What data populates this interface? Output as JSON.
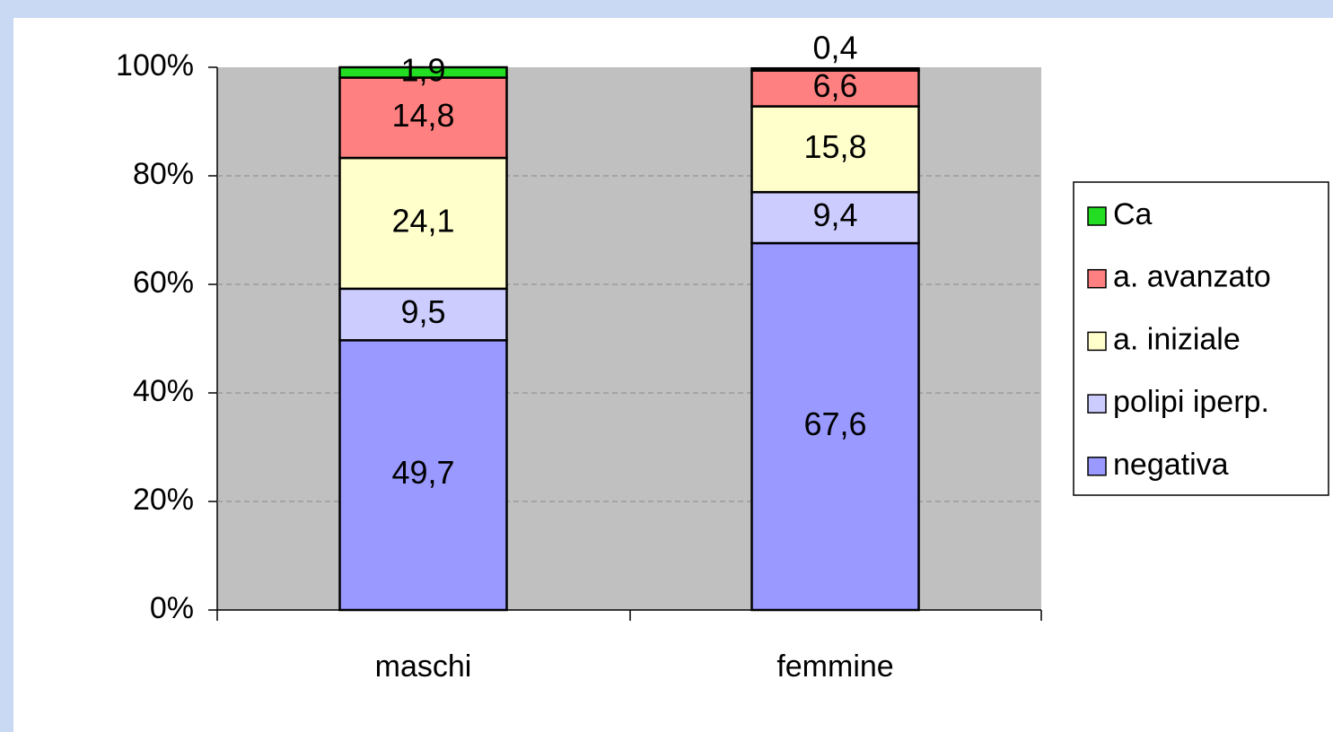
{
  "chart_data": {
    "type": "stacked_bar",
    "categories": [
      "maschi",
      "femmine"
    ],
    "series": [
      {
        "name": "negativa",
        "color": "#9999ff",
        "values": [
          49.7,
          67.6
        ],
        "value_labels": [
          "49,7",
          "67,6"
        ]
      },
      {
        "name": "polipi iperp.",
        "color": "#ccccff",
        "values": [
          9.5,
          9.4
        ],
        "value_labels": [
          "9,5",
          "9,4"
        ]
      },
      {
        "name": "a. iniziale",
        "color": "#ffffcc",
        "values": [
          24.1,
          15.8
        ],
        "value_labels": [
          "24,1",
          "15,8"
        ]
      },
      {
        "name": "a. avanzato",
        "color": "#ff8080",
        "values": [
          14.8,
          6.6
        ],
        "value_labels": [
          "14,8",
          "6,6"
        ]
      },
      {
        "name": "Ca",
        "color": "#22dd22",
        "values": [
          1.9,
          0.4
        ],
        "value_labels": [
          "1,9",
          "0,4"
        ]
      }
    ],
    "ylim": [
      0,
      100
    ],
    "yticks": [
      {
        "value": 0,
        "label": "0%"
      },
      {
        "value": 20,
        "label": "20%"
      },
      {
        "value": 40,
        "label": "40%"
      },
      {
        "value": 60,
        "label": "60%"
      },
      {
        "value": 80,
        "label": "80%"
      },
      {
        "value": 100,
        "label": "100%"
      }
    ],
    "grid": true,
    "legend": "right"
  }
}
